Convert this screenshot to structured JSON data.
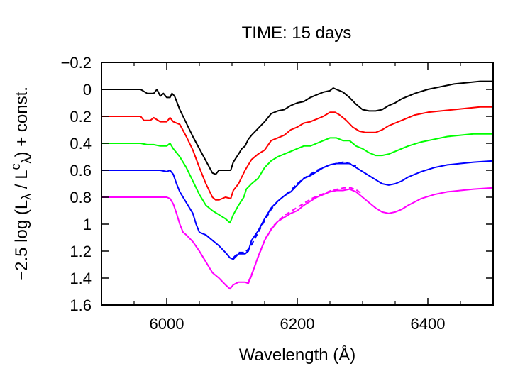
{
  "chart_data": {
    "type": "line",
    "title": "TIME: 15 days",
    "xlabel": "Wavelength (Å)",
    "ylabel": {
      "prefix": "−2.5 log (L",
      "sub1": "λ",
      "mid": " / L",
      "sup": "c",
      "sub2": "λ",
      "suffix": ") + const."
    },
    "xlim": [
      5900,
      6500
    ],
    "ylim": [
      -0.2,
      1.6
    ],
    "y_inverted": true,
    "xticks": [
      6000,
      6200,
      6400
    ],
    "xtick_labels": [
      "6000",
      "6200",
      "6400"
    ],
    "yticks": [
      -0.2,
      0,
      0.2,
      0.4,
      0.6,
      0.8,
      1,
      1.2,
      1.4,
      1.6
    ],
    "ytick_labels": [
      "−0.2",
      "0",
      "0.2",
      "0.4",
      "0.6",
      "0.8",
      "1",
      "1.2",
      "1.4",
      "1.6"
    ],
    "grid": false,
    "series": [
      {
        "color": "#000000",
        "style": "solid",
        "points": [
          [
            5900,
            0
          ],
          [
            5960,
            0
          ],
          [
            5970,
            0.03
          ],
          [
            5980,
            0.03
          ],
          [
            5985,
            0
          ],
          [
            5990,
            0.05
          ],
          [
            5995,
            0.03
          ],
          [
            6000,
            0.06
          ],
          [
            6005,
            0.06
          ],
          [
            6008,
            0.03
          ],
          [
            6012,
            0.05
          ],
          [
            6020,
            0.15
          ],
          [
            6030,
            0.25
          ],
          [
            6040,
            0.35
          ],
          [
            6050,
            0.44
          ],
          [
            6060,
            0.53
          ],
          [
            6070,
            0.62
          ],
          [
            6075,
            0.63
          ],
          [
            6080,
            0.6
          ],
          [
            6090,
            0.6
          ],
          [
            6098,
            0.6
          ],
          [
            6102,
            0.54
          ],
          [
            6110,
            0.48
          ],
          [
            6115,
            0.44
          ],
          [
            6120,
            0.42
          ],
          [
            6125,
            0.37
          ],
          [
            6130,
            0.34
          ],
          [
            6140,
            0.29
          ],
          [
            6150,
            0.24
          ],
          [
            6160,
            0.18
          ],
          [
            6170,
            0.16
          ],
          [
            6180,
            0.15
          ],
          [
            6190,
            0.12
          ],
          [
            6200,
            0.1
          ],
          [
            6210,
            0.09
          ],
          [
            6220,
            0.06
          ],
          [
            6230,
            0.04
          ],
          [
            6240,
            0.02
          ],
          [
            6250,
            0.01
          ],
          [
            6255,
            -0.01
          ],
          [
            6260,
            0
          ],
          [
            6270,
            0.02
          ],
          [
            6280,
            0.06
          ],
          [
            6290,
            0.11
          ],
          [
            6300,
            0.15
          ],
          [
            6310,
            0.16
          ],
          [
            6320,
            0.16
          ],
          [
            6330,
            0.15
          ],
          [
            6340,
            0.12
          ],
          [
            6350,
            0.1
          ],
          [
            6360,
            0.07
          ],
          [
            6380,
            0.03
          ],
          [
            6400,
            0
          ],
          [
            6420,
            -0.02
          ],
          [
            6440,
            -0.04
          ],
          [
            6460,
            -0.05
          ],
          [
            6480,
            -0.06
          ],
          [
            6500,
            -0.06
          ]
        ]
      },
      {
        "color": "#ff0000",
        "style": "solid",
        "points": [
          [
            5900,
            0.2
          ],
          [
            5960,
            0.2
          ],
          [
            5965,
            0.23
          ],
          [
            5975,
            0.23
          ],
          [
            5980,
            0.21
          ],
          [
            5990,
            0.24
          ],
          [
            6000,
            0.24
          ],
          [
            6005,
            0.21
          ],
          [
            6010,
            0.24
          ],
          [
            6020,
            0.26
          ],
          [
            6030,
            0.35
          ],
          [
            6040,
            0.45
          ],
          [
            6050,
            0.58
          ],
          [
            6060,
            0.7
          ],
          [
            6070,
            0.8
          ],
          [
            6075,
            0.82
          ],
          [
            6080,
            0.82
          ],
          [
            6090,
            0.8
          ],
          [
            6098,
            0.81
          ],
          [
            6102,
            0.75
          ],
          [
            6110,
            0.7
          ],
          [
            6115,
            0.65
          ],
          [
            6120,
            0.6
          ],
          [
            6125,
            0.56
          ],
          [
            6130,
            0.52
          ],
          [
            6140,
            0.48
          ],
          [
            6150,
            0.45
          ],
          [
            6160,
            0.38
          ],
          [
            6170,
            0.36
          ],
          [
            6180,
            0.34
          ],
          [
            6190,
            0.3
          ],
          [
            6200,
            0.28
          ],
          [
            6210,
            0.25
          ],
          [
            6220,
            0.24
          ],
          [
            6230,
            0.22
          ],
          [
            6240,
            0.2
          ],
          [
            6250,
            0.17
          ],
          [
            6258,
            0.17
          ],
          [
            6265,
            0.19
          ],
          [
            6275,
            0.23
          ],
          [
            6285,
            0.28
          ],
          [
            6295,
            0.31
          ],
          [
            6305,
            0.32
          ],
          [
            6320,
            0.32
          ],
          [
            6330,
            0.3
          ],
          [
            6340,
            0.27
          ],
          [
            6350,
            0.25
          ],
          [
            6365,
            0.22
          ],
          [
            6380,
            0.19
          ],
          [
            6400,
            0.17
          ],
          [
            6420,
            0.16
          ],
          [
            6440,
            0.15
          ],
          [
            6460,
            0.14
          ],
          [
            6480,
            0.13
          ],
          [
            6500,
            0.13
          ]
        ]
      },
      {
        "color": "#00ff00",
        "style": "solid",
        "points": [
          [
            5900,
            0.4
          ],
          [
            5960,
            0.4
          ],
          [
            5970,
            0.41
          ],
          [
            5980,
            0.41
          ],
          [
            5990,
            0.42
          ],
          [
            6000,
            0.42
          ],
          [
            6005,
            0.4
          ],
          [
            6010,
            0.44
          ],
          [
            6020,
            0.5
          ],
          [
            6030,
            0.58
          ],
          [
            6040,
            0.68
          ],
          [
            6050,
            0.78
          ],
          [
            6060,
            0.86
          ],
          [
            6070,
            0.9
          ],
          [
            6080,
            0.93
          ],
          [
            6090,
            0.96
          ],
          [
            6097,
            0.99
          ],
          [
            6102,
            0.93
          ],
          [
            6110,
            0.86
          ],
          [
            6118,
            0.8
          ],
          [
            6122,
            0.74
          ],
          [
            6130,
            0.7
          ],
          [
            6140,
            0.66
          ],
          [
            6150,
            0.58
          ],
          [
            6160,
            0.53
          ],
          [
            6170,
            0.5
          ],
          [
            6180,
            0.48
          ],
          [
            6190,
            0.46
          ],
          [
            6200,
            0.44
          ],
          [
            6210,
            0.42
          ],
          [
            6220,
            0.42
          ],
          [
            6230,
            0.4
          ],
          [
            6240,
            0.38
          ],
          [
            6250,
            0.36
          ],
          [
            6260,
            0.36
          ],
          [
            6270,
            0.38
          ],
          [
            6280,
            0.38
          ],
          [
            6290,
            0.42
          ],
          [
            6300,
            0.44
          ],
          [
            6310,
            0.47
          ],
          [
            6320,
            0.49
          ],
          [
            6330,
            0.49
          ],
          [
            6340,
            0.48
          ],
          [
            6350,
            0.46
          ],
          [
            6360,
            0.44
          ],
          [
            6370,
            0.42
          ],
          [
            6390,
            0.39
          ],
          [
            6410,
            0.37
          ],
          [
            6430,
            0.35
          ],
          [
            6450,
            0.34
          ],
          [
            6470,
            0.33
          ],
          [
            6500,
            0.33
          ]
        ]
      },
      {
        "color": "#0000ff",
        "style": "solid",
        "points": [
          [
            5900,
            0.6
          ],
          [
            5990,
            0.6
          ],
          [
            6000,
            0.61
          ],
          [
            6005,
            0.6
          ],
          [
            6010,
            0.63
          ],
          [
            6015,
            0.7
          ],
          [
            6020,
            0.76
          ],
          [
            6030,
            0.84
          ],
          [
            6040,
            0.92
          ],
          [
            6045,
            1
          ],
          [
            6050,
            1.06
          ],
          [
            6060,
            1.08
          ],
          [
            6070,
            1.12
          ],
          [
            6080,
            1.16
          ],
          [
            6090,
            1.21
          ],
          [
            6097,
            1.25
          ],
          [
            6102,
            1.26
          ],
          [
            6110,
            1.22
          ],
          [
            6120,
            1.22
          ],
          [
            6125,
            1.2
          ],
          [
            6130,
            1.12
          ],
          [
            6140,
            1.05
          ],
          [
            6150,
            0.96
          ],
          [
            6160,
            0.88
          ],
          [
            6170,
            0.83
          ],
          [
            6180,
            0.79
          ],
          [
            6190,
            0.76
          ],
          [
            6200,
            0.71
          ],
          [
            6210,
            0.66
          ],
          [
            6220,
            0.64
          ],
          [
            6230,
            0.61
          ],
          [
            6240,
            0.58
          ],
          [
            6250,
            0.56
          ],
          [
            6260,
            0.55
          ],
          [
            6270,
            0.55
          ],
          [
            6280,
            0.55
          ],
          [
            6290,
            0.58
          ],
          [
            6300,
            0.61
          ],
          [
            6310,
            0.64
          ],
          [
            6320,
            0.67
          ],
          [
            6330,
            0.7
          ],
          [
            6340,
            0.71
          ],
          [
            6350,
            0.7
          ],
          [
            6360,
            0.68
          ],
          [
            6370,
            0.65
          ],
          [
            6390,
            0.61
          ],
          [
            6410,
            0.58
          ],
          [
            6430,
            0.56
          ],
          [
            6450,
            0.55
          ],
          [
            6470,
            0.54
          ],
          [
            6500,
            0.53
          ]
        ]
      },
      {
        "color": "#0000ff",
        "style": "dashed",
        "points": [
          [
            6102,
            1.25
          ],
          [
            6110,
            1.21
          ],
          [
            6120,
            1.21
          ],
          [
            6128,
            1.17
          ],
          [
            6138,
            1.08
          ],
          [
            6148,
            0.99
          ],
          [
            6160,
            0.89
          ],
          [
            6170,
            0.83
          ],
          [
            6180,
            0.79
          ],
          [
            6190,
            0.75
          ],
          [
            6200,
            0.7
          ],
          [
            6210,
            0.66
          ],
          [
            6220,
            0.63
          ],
          [
            6230,
            0.6
          ],
          [
            6240,
            0.58
          ],
          [
            6250,
            0.56
          ],
          [
            6260,
            0.55
          ],
          [
            6270,
            0.54
          ],
          [
            6280,
            0.55
          ],
          [
            6290,
            0.57
          ]
        ]
      },
      {
        "color": "#ff00ff",
        "style": "solid",
        "points": [
          [
            5900,
            0.8
          ],
          [
            5990,
            0.8
          ],
          [
            6000,
            0.8
          ],
          [
            6005,
            0.81
          ],
          [
            6010,
            0.85
          ],
          [
            6015,
            0.92
          ],
          [
            6020,
            1
          ],
          [
            6025,
            1.06
          ],
          [
            6030,
            1.08
          ],
          [
            6040,
            1.13
          ],
          [
            6050,
            1.2
          ],
          [
            6060,
            1.28
          ],
          [
            6070,
            1.36
          ],
          [
            6080,
            1.4
          ],
          [
            6090,
            1.45
          ],
          [
            6097,
            1.48
          ],
          [
            6102,
            1.45
          ],
          [
            6110,
            1.43
          ],
          [
            6120,
            1.43
          ],
          [
            6125,
            1.44
          ],
          [
            6130,
            1.38
          ],
          [
            6140,
            1.24
          ],
          [
            6150,
            1.12
          ],
          [
            6160,
            1.04
          ],
          [
            6170,
            0.98
          ],
          [
            6180,
            0.95
          ],
          [
            6190,
            0.92
          ],
          [
            6200,
            0.9
          ],
          [
            6210,
            0.86
          ],
          [
            6220,
            0.83
          ],
          [
            6230,
            0.8
          ],
          [
            6240,
            0.78
          ],
          [
            6250,
            0.76
          ],
          [
            6260,
            0.75
          ],
          [
            6270,
            0.75
          ],
          [
            6280,
            0.74
          ],
          [
            6290,
            0.76
          ],
          [
            6300,
            0.8
          ],
          [
            6310,
            0.84
          ],
          [
            6320,
            0.88
          ],
          [
            6330,
            0.91
          ],
          [
            6340,
            0.92
          ],
          [
            6350,
            0.91
          ],
          [
            6360,
            0.89
          ],
          [
            6370,
            0.86
          ],
          [
            6390,
            0.81
          ],
          [
            6410,
            0.78
          ],
          [
            6430,
            0.76
          ],
          [
            6450,
            0.75
          ],
          [
            6470,
            0.74
          ],
          [
            6500,
            0.73
          ]
        ]
      },
      {
        "color": "#ff00ff",
        "style": "dashed",
        "points": [
          [
            6125,
            1.43
          ],
          [
            6132,
            1.35
          ],
          [
            6142,
            1.22
          ],
          [
            6152,
            1.1
          ],
          [
            6162,
            1.02
          ],
          [
            6172,
            0.97
          ],
          [
            6182,
            0.93
          ],
          [
            6192,
            0.9
          ],
          [
            6202,
            0.87
          ],
          [
            6212,
            0.84
          ],
          [
            6222,
            0.81
          ],
          [
            6232,
            0.79
          ],
          [
            6242,
            0.77
          ],
          [
            6252,
            0.75
          ],
          [
            6262,
            0.74
          ],
          [
            6272,
            0.73
          ],
          [
            6282,
            0.73
          ],
          [
            6292,
            0.75
          ],
          [
            6300,
            0.78
          ]
        ]
      }
    ]
  }
}
